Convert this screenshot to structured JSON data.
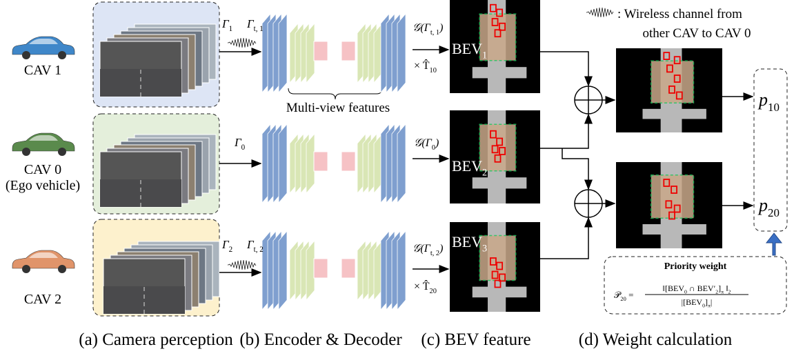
{
  "vehicles": [
    {
      "label": "CAV 1"
    },
    {
      "label": "CAV 0",
      "note": "(Ego vehicle)"
    },
    {
      "label": "CAV 2"
    }
  ],
  "inputs": [
    [
      {
        "t": "Γ"
      },
      {
        "sub": "1"
      }
    ],
    [
      {
        "t": "Γ"
      },
      {
        "sub": "t, 1"
      }
    ],
    [
      {
        "t": "Γ"
      },
      {
        "sub": "0"
      }
    ],
    [
      {
        "t": "Γ"
      },
      {
        "sub": "2"
      }
    ],
    [
      {
        "t": "Γ"
      },
      {
        "sub": "t, 2"
      }
    ]
  ],
  "transforms": [
    [
      {
        "t": "𝒢(Γ"
      },
      {
        "sub": "t, 1"
      },
      {
        "t": ")"
      }
    ],
    [
      {
        "t": "× T̂"
      },
      {
        "sub": "10"
      }
    ],
    [
      {
        "t": "𝒢(Γ"
      },
      {
        "sub": "0"
      },
      {
        "t": ")"
      }
    ],
    [
      {
        "t": "𝒢(Γ"
      },
      {
        "sub": "t, 2"
      },
      {
        "t": ")"
      }
    ],
    [
      {
        "t": "× T̂"
      },
      {
        "sub": "20"
      }
    ]
  ],
  "multi_view_label": "Multi-view features",
  "bev_labels": [
    [
      {
        "t": "BEV"
      },
      {
        "sub": "1"
      }
    ],
    [
      {
        "t": "BEV"
      },
      {
        "sub": "2"
      }
    ],
    [
      {
        "t": "BEV"
      },
      {
        "sub": "3"
      }
    ]
  ],
  "legend": {
    "line1": ": Wireless channel from",
    "line2": "other CAV to CAV 0"
  },
  "priorities": [
    [
      {
        "t": "p"
      },
      {
        "sub": "10"
      }
    ],
    [
      {
        "t": "p"
      },
      {
        "sub": "20"
      }
    ]
  ],
  "priority_box": {
    "title": "Priority weight",
    "lhs": [
      {
        "t": "𝒫"
      },
      {
        "sub": "20"
      },
      {
        "t": " ="
      }
    ],
    "numerator": [
      {
        "t": "‖[BEV"
      },
      {
        "sub": "0"
      },
      {
        "t": " ∩ BEV′"
      },
      {
        "sub": "2"
      },
      {
        "t": "]"
      },
      {
        "sub": "π"
      },
      {
        "t": " ‖"
      },
      {
        "sub": "2"
      }
    ],
    "denominator": [
      {
        "t": "|[BEV"
      },
      {
        "sub": "0"
      },
      {
        "t": "]"
      },
      {
        "sub": "π"
      },
      {
        "t": "|"
      }
    ]
  },
  "captions": [
    "(a) Camera perception",
    "(b) Encoder & Decoder",
    "(c) BEV feature",
    "(d) Weight calculation"
  ]
}
